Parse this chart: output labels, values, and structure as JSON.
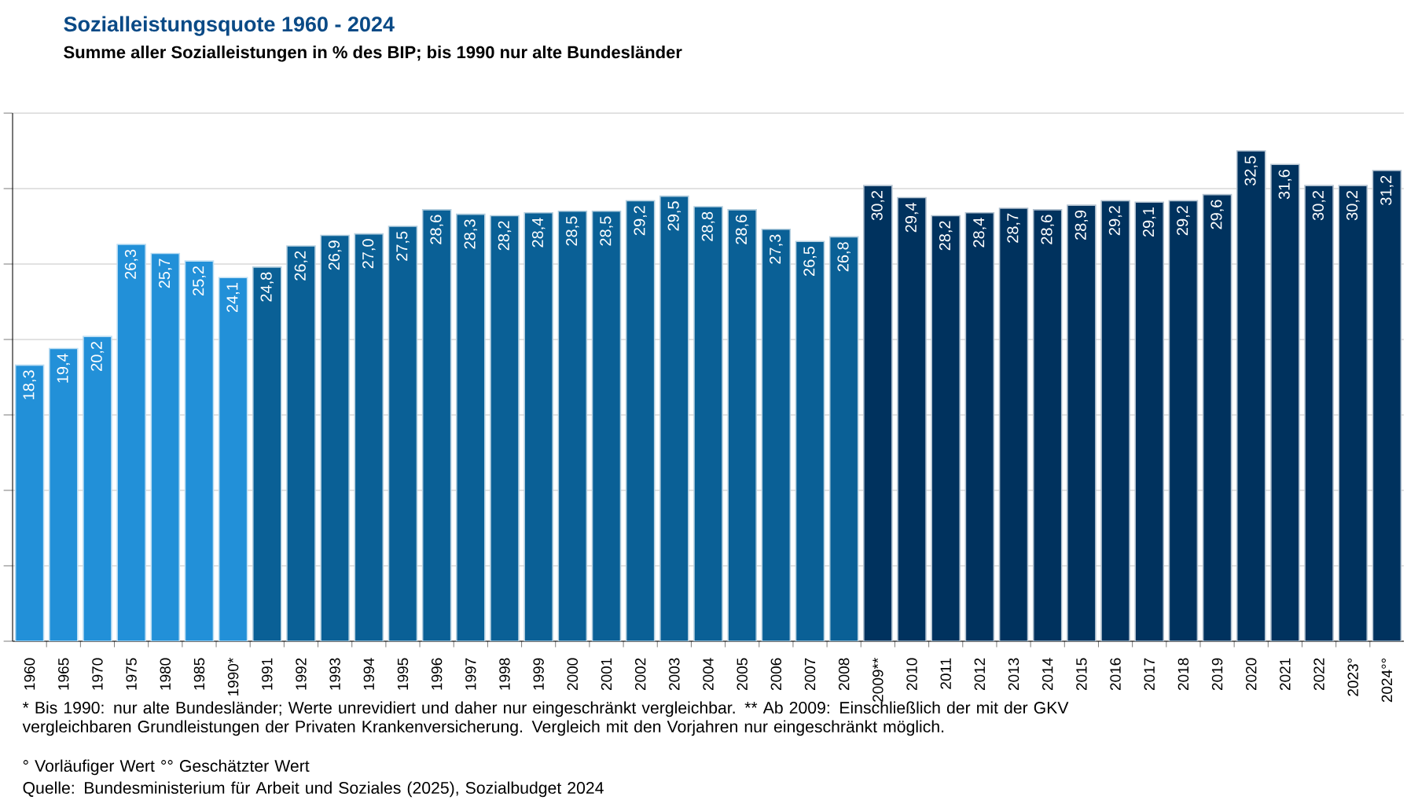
{
  "chart_data": {
    "type": "bar",
    "title": "Sozialleistungsquote 1960 - 2024",
    "subtitle": "Summe aller Sozialleistungen in % des BIP; bis 1990 nur alte Bundesländer",
    "categories": [
      "1960",
      "1965",
      "1970",
      "1975",
      "1980",
      "1985",
      "1990*",
      "1991",
      "1992",
      "1993",
      "1994",
      "1995",
      "1996",
      "1997",
      "1998",
      "1999",
      "2000",
      "2001",
      "2002",
      "2003",
      "2004",
      "2005",
      "2006",
      "2007",
      "2008",
      "2009**",
      "2010",
      "2011",
      "2012",
      "2013",
      "2014",
      "2015",
      "2016",
      "2017",
      "2018",
      "2019",
      "2020",
      "2021",
      "2022",
      "2023°",
      "2024°°"
    ],
    "values": [
      18.3,
      19.4,
      20.2,
      26.3,
      25.7,
      25.2,
      24.1,
      24.8,
      26.2,
      26.9,
      27.0,
      27.5,
      28.6,
      28.3,
      28.2,
      28.4,
      28.5,
      28.5,
      29.2,
      29.5,
      28.8,
      28.6,
      27.3,
      26.5,
      26.8,
      30.2,
      29.4,
      28.2,
      28.4,
      28.7,
      28.6,
      28.9,
      29.2,
      29.1,
      29.2,
      29.6,
      32.5,
      31.6,
      30.2,
      30.2,
      31.2
    ],
    "value_labels": [
      "18,3",
      "19,4",
      "20,2",
      "26,3",
      "25,7",
      "25,2",
      "24,1",
      "24,8",
      "26,2",
      "26,9",
      "27,0",
      "27,5",
      "28,6",
      "28,3",
      "28,2",
      "28,4",
      "28,5",
      "28,5",
      "29,2",
      "29,5",
      "28,8",
      "28,6",
      "27,3",
      "26,5",
      "26,8",
      "30,2",
      "29,4",
      "28,2",
      "28,4",
      "28,7",
      "28,6",
      "28,9",
      "29,2",
      "29,1",
      "29,2",
      "29,6",
      "32,5",
      "31,6",
      "30,2",
      "30,2",
      "31,2"
    ],
    "colors": [
      "#2290d8",
      "#2290d8",
      "#2290d8",
      "#2290d8",
      "#2290d8",
      "#2290d8",
      "#2290d8",
      "#0a6096",
      "#0a6096",
      "#0a6096",
      "#0a6096",
      "#0a6096",
      "#0a6096",
      "#0a6096",
      "#0a6096",
      "#0a6096",
      "#0a6096",
      "#0a6096",
      "#0a6096",
      "#0a6096",
      "#0a6096",
      "#0a6096",
      "#0a6096",
      "#0a6096",
      "#0a6096",
      "#00325e",
      "#00325e",
      "#00325e",
      "#00325e",
      "#00325e",
      "#00325e",
      "#00325e",
      "#00325e",
      "#00325e",
      "#00325e",
      "#00325e",
      "#00325e",
      "#00325e",
      "#00325e",
      "#00325e",
      "#00325e"
    ],
    "ylim": [
      0,
      35
    ],
    "yticks": [
      {
        "value": 0,
        "label": null
      },
      {
        "value": 5,
        "label": null
      },
      {
        "value": 10,
        "label": null
      },
      {
        "value": 15,
        "label": null
      },
      {
        "value": 20,
        "label": null
      },
      {
        "value": 25,
        "label": null
      },
      {
        "value": 30,
        "label": null
      },
      {
        "value": 35,
        "label": null
      }
    ],
    "tick_labels": "x",
    "grid": "y",
    "annotations": [
      "* Bis 1990: nur alte Bundesländer; Werte unrevidiert und daher nur eingeschränkt vergleichbar. ** Ab 2009: Einschließlich der mit der GKV vergleichbaren Grundleistungen der Privaten Krankenversicherung. Vergleich mit den  Vorjahren nur eingeschränkt möglich.",
      "° Vorläufiger Wert   °° Geschätzter Wert",
      "Quelle: Bundesministerium für Arbeit und Soziales (2025), Sozialbudget 2024"
    ]
  }
}
